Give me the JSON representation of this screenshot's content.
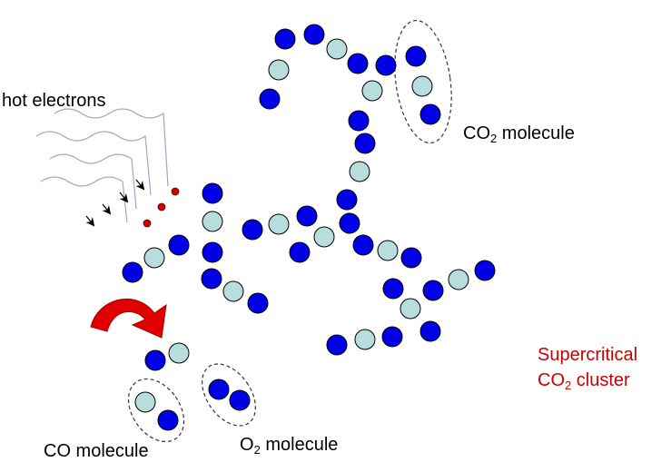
{
  "labels": {
    "hot_electrons": "hot electrons",
    "co2_molecule": {
      "prefix": "CO",
      "sub": "2",
      "suffix": " molecule"
    },
    "supercritical_line1": "Supercritical",
    "supercritical_line2": {
      "prefix": "CO",
      "sub": "2",
      "suffix": " cluster"
    },
    "co_molecule": "CO molecule",
    "o2_molecule": {
      "prefix": "O",
      "sub": "2",
      "suffix": " molecule"
    }
  },
  "colors": {
    "oxygen_atom": "#0000e6",
    "carbon_atom": "#b7dedd",
    "electron_dot": "#cc0000",
    "wave_line": "#a3a3cf",
    "reaction_arrow": "#e00000",
    "supercritical_text": "#cc0000",
    "text": "#000000"
  },
  "icons": {
    "reaction_arrow": "curved-arrow-icon",
    "electron_arrow": "arrowhead-icon"
  }
}
